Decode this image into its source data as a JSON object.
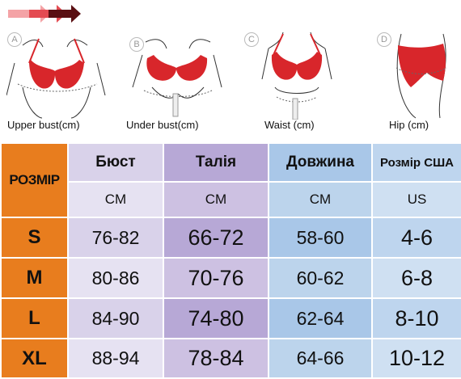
{
  "illustrations": [
    {
      "letter": "A",
      "caption": "Upper bust(cm)",
      "icon": "upper-bust-measure"
    },
    {
      "letter": "B",
      "caption": "Under bust(cm)",
      "icon": "under-bust-measure"
    },
    {
      "letter": "C",
      "caption": "Waist (cm)",
      "icon": "waist-measure"
    },
    {
      "letter": "D",
      "caption": "Hip (cm)",
      "icon": "hip-measure"
    }
  ],
  "table": {
    "size_header": "РОЗМІР",
    "columns": [
      {
        "title": "Бюст",
        "unit": "CM"
      },
      {
        "title": "Талія",
        "unit": "CM"
      },
      {
        "title": "Довжина",
        "unit": "CM"
      },
      {
        "title": "Розмір США",
        "unit": "US"
      }
    ],
    "rows": [
      {
        "size": "S",
        "values": [
          "76-82",
          "66-72",
          "58-60",
          "4-6"
        ]
      },
      {
        "size": "M",
        "values": [
          "80-86",
          "70-76",
          "60-62",
          "6-8"
        ]
      },
      {
        "size": "L",
        "values": [
          "84-90",
          "74-80",
          "62-64",
          "8-10"
        ]
      },
      {
        "size": "XL",
        "values": [
          "88-94",
          "78-84",
          "64-66",
          "10-12"
        ]
      }
    ]
  },
  "colors": {
    "accent": "#e87d1e",
    "garment": "#d8262b"
  }
}
